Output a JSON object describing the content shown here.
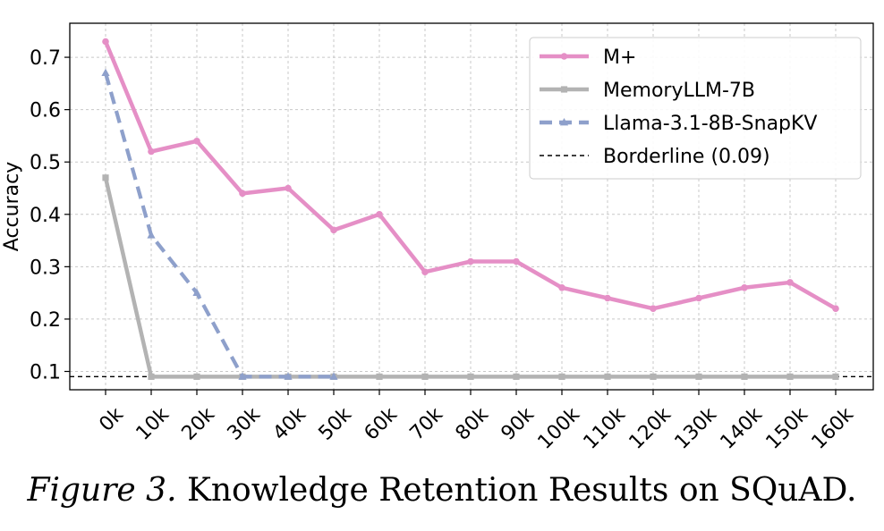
{
  "chart_data": {
    "type": "line",
    "title": "",
    "xlabel": "",
    "ylabel": "Accuracy",
    "categories": [
      "0k",
      "10k",
      "20k",
      "30k",
      "40k",
      "50k",
      "60k",
      "70k",
      "80k",
      "90k",
      "100k",
      "110k",
      "120k",
      "130k",
      "140k",
      "150k",
      "160k"
    ],
    "ylim": [
      0.065,
      0.765
    ],
    "yticks": [
      0.1,
      0.2,
      0.3,
      0.4,
      0.5,
      0.6,
      0.7
    ],
    "ytick_labels": [
      "0.1",
      "0.2",
      "0.3",
      "0.4",
      "0.5",
      "0.6",
      "0.7"
    ],
    "grid": true,
    "legend_position": "top-right",
    "series": [
      {
        "name": "M+",
        "color": "#e58fc6",
        "style": "solid",
        "marker": "circle",
        "values": [
          0.73,
          0.52,
          0.54,
          0.44,
          0.45,
          0.37,
          0.4,
          0.29,
          0.31,
          0.31,
          0.26,
          0.24,
          0.22,
          0.24,
          0.26,
          0.27,
          0.22
        ]
      },
      {
        "name": "MemoryLLM-7B",
        "color": "#b3b3b3",
        "style": "solid",
        "marker": "square",
        "values": [
          0.47,
          0.09,
          0.09,
          0.09,
          0.09,
          0.09,
          0.09,
          0.09,
          0.09,
          0.09,
          0.09,
          0.09,
          0.09,
          0.09,
          0.09,
          0.09,
          0.09
        ]
      },
      {
        "name": "Llama-3.1-8B-SnapKV",
        "color": "#8ea0cb",
        "style": "dashed",
        "marker": "triangle",
        "values": [
          0.67,
          0.36,
          0.25,
          0.09,
          0.09,
          0.09,
          null,
          null,
          null,
          null,
          null,
          null,
          null,
          null,
          null,
          null,
          null
        ]
      }
    ],
    "reference_line": {
      "name": "Borderline (0.09)",
      "value": 0.09,
      "color": "#000000",
      "style": "dashed"
    }
  },
  "caption": {
    "label": "Figure 3.",
    "text": "Knowledge Retention Results on SQuAD."
  }
}
